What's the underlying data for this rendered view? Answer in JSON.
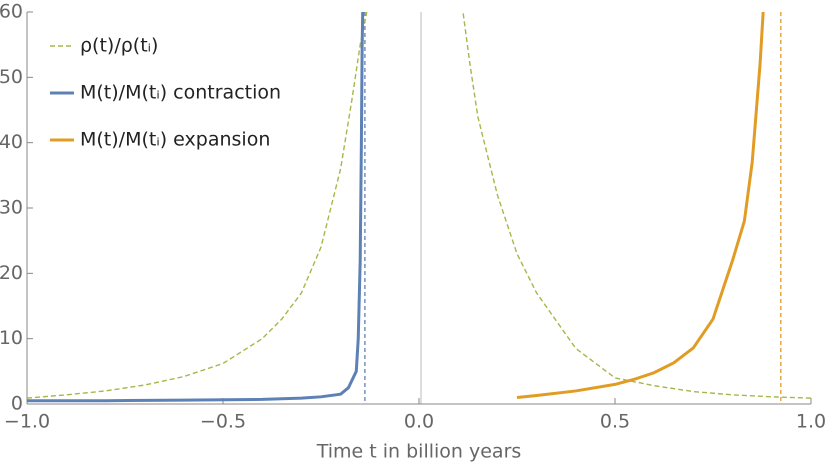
{
  "chart_data": {
    "type": "line",
    "xlabel": "Time t in billion years",
    "xlim": [
      -1,
      1
    ],
    "ylim": [
      0,
      60
    ],
    "xticks": [
      {
        "value": -1,
        "label": "−1.0"
      },
      {
        "value": -0.5,
        "label": "−0.5"
      },
      {
        "value": 0,
        "label": "0.0"
      },
      {
        "value": 0.5,
        "label": "0.5"
      },
      {
        "value": 1,
        "label": "1.0"
      }
    ],
    "yticks": [
      0,
      10,
      20,
      30,
      40,
      50,
      60
    ],
    "legend": "upper left",
    "series": [
      {
        "name": "ρ(t)/ρ(tᵢ)",
        "color": "#a3b84a",
        "style": "dashed",
        "x": [
          -1,
          -0.9,
          -0.8,
          -0.7,
          -0.6,
          -0.5,
          -0.4,
          -0.35,
          -0.3,
          -0.25,
          -0.2,
          -0.17,
          -0.15,
          -0.13,
          0,
          0.11,
          0.13,
          0.15,
          0.2,
          0.25,
          0.3,
          0.4,
          0.5,
          0.6,
          0.7,
          0.8,
          0.9,
          1.0
        ],
        "values": [
          0.9,
          1.4,
          2.0,
          2.9,
          4.2,
          6.2,
          10,
          13,
          17,
          24,
          36,
          47,
          55,
          61,
          null,
          61,
          52,
          44,
          32,
          23,
          17,
          8.5,
          4.0,
          2.8,
          1.9,
          1.4,
          1.1,
          0.9
        ]
      },
      {
        "name": "M(t)/M(tᵢ) contraction",
        "color": "#5e81b5",
        "style": "solid",
        "x": [
          -1,
          -0.8,
          -0.6,
          -0.4,
          -0.3,
          -0.25,
          -0.2,
          -0.18,
          -0.16,
          -0.155,
          -0.15,
          -0.147,
          -0.145,
          -0.143
        ],
        "values": [
          0.5,
          0.5,
          0.6,
          0.7,
          0.9,
          1.1,
          1.5,
          2.5,
          5,
          10,
          22,
          40,
          55,
          62
        ]
      },
      {
        "name": "M(t)/M(tᵢ) expansion",
        "color": "#e19c24",
        "style": "solid",
        "x": [
          0.25,
          0.3,
          0.4,
          0.5,
          0.55,
          0.6,
          0.65,
          0.7,
          0.75,
          0.8,
          0.83,
          0.85,
          0.87,
          0.88
        ],
        "values": [
          1.0,
          1.3,
          2.0,
          3.0,
          3.8,
          4.8,
          6.3,
          8.6,
          13,
          22,
          28,
          37,
          52,
          62
        ]
      }
    ],
    "vlines": [
      {
        "x": -0.138,
        "color": "#5e81b5"
      },
      {
        "x": 0.923,
        "color": "#e19c24"
      }
    ]
  }
}
